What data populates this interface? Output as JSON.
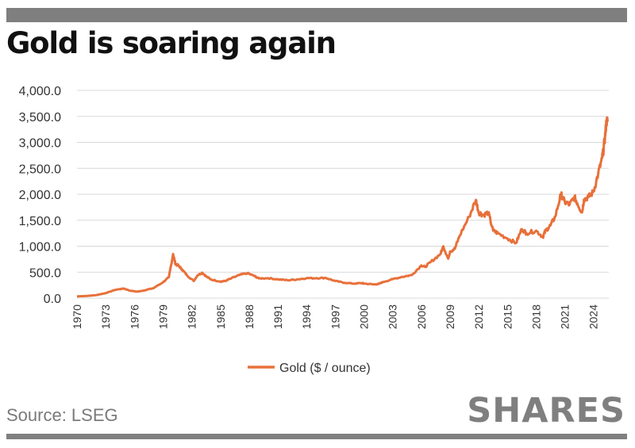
{
  "title": "Gold is soaring again",
  "source": "Source: LSEG",
  "brand": "SHARES",
  "chart_data": {
    "type": "line",
    "title": "Gold is soaring again",
    "xlabel": "",
    "ylabel": "",
    "ylim": [
      0,
      4000
    ],
    "xlim": [
      1970,
      2025.6
    ],
    "y_ticks": [
      "0.0",
      "500.0",
      "1,000.0",
      "1,500.0",
      "2,000.0",
      "2,500.0",
      "3,000.0",
      "3,500.0",
      "4,000.0"
    ],
    "x_ticks": [
      "1970",
      "1973",
      "1976",
      "1979",
      "1982",
      "1985",
      "1988",
      "1991",
      "1994",
      "1997",
      "2000",
      "2003",
      "2006",
      "2009",
      "2012",
      "2015",
      "2018",
      "2021",
      "2024"
    ],
    "grid": "horizontal",
    "legend": "bottom",
    "series": [
      {
        "name": "Gold ($ / ounce)",
        "color": "#e8703a",
        "x": [
          1970,
          1971,
          1972,
          1973,
          1974,
          1974.9,
          1975.5,
          1976.3,
          1977,
          1978,
          1979,
          1979.6,
          1980.05,
          1980.3,
          1980.6,
          1981,
          1981.5,
          1982.2,
          1982.6,
          1983.1,
          1983.5,
          1984,
          1985,
          1985.5,
          1986,
          1987,
          1987.8,
          1988.5,
          1989,
          1990,
          1991,
          1992,
          1993,
          1994,
          1995,
          1996,
          1997,
          1998,
          1999,
          1999.8,
          2000,
          2001,
          2001.5,
          2002,
          2003,
          2004,
          2005,
          2006,
          2006.4,
          2007,
          2008,
          2008.3,
          2008.8,
          2009,
          2009.5,
          2010,
          2011,
          2011.7,
          2012,
          2012.5,
          2013,
          2013.5,
          2014,
          2015,
          2015.9,
          2016.5,
          2017,
          2018,
          2018.7,
          2019,
          2019.5,
          2020,
          2020.6,
          2021,
          2021.5,
          2022,
          2022.3,
          2022.8,
          2023,
          2023.5,
          2024,
          2024.5,
          2024.9,
          2025,
          2025.2,
          2025.35,
          2025.5
        ],
        "values": [
          35,
          41,
          58,
          97,
          160,
          185,
          145,
          125,
          148,
          193,
          307,
          400,
          850,
          650,
          630,
          550,
          440,
          330,
          440,
          490,
          420,
          360,
          320,
          330,
          370,
          447,
          480,
          430,
          380,
          385,
          362,
          345,
          360,
          385,
          385,
          390,
          330,
          295,
          280,
          290,
          280,
          265,
          270,
          310,
          365,
          410,
          445,
          630,
          600,
          700,
          850,
          1000,
          760,
          900,
          950,
          1200,
          1570,
          1890,
          1650,
          1600,
          1650,
          1300,
          1250,
          1150,
          1060,
          1330,
          1250,
          1300,
          1180,
          1300,
          1400,
          1570,
          2000,
          1850,
          1800,
          1950,
          1830,
          1650,
          1900,
          1950,
          2050,
          2400,
          2700,
          2800,
          3100,
          3400,
          3420
        ]
      }
    ]
  }
}
